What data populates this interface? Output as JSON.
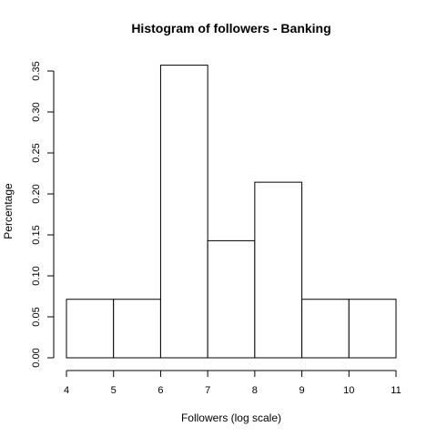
{
  "chart_data": {
    "type": "bar",
    "title": "Histogram of followers - Banking",
    "xlabel": "Followers (log scale)",
    "ylabel": "Percentage",
    "bins": [
      {
        "from": 4,
        "to": 5,
        "value": 0.0714
      },
      {
        "from": 5,
        "to": 6,
        "value": 0.0714
      },
      {
        "from": 6,
        "to": 7,
        "value": 0.3571
      },
      {
        "from": 7,
        "to": 8,
        "value": 0.1429
      },
      {
        "from": 8,
        "to": 9,
        "value": 0.2143
      },
      {
        "from": 9,
        "to": 10,
        "value": 0.0714
      },
      {
        "from": 10,
        "to": 11,
        "value": 0.0714
      }
    ],
    "xlim": [
      4,
      11
    ],
    "ylim": [
      0,
      0.35
    ],
    "x_ticks": [
      "4",
      "5",
      "6",
      "7",
      "8",
      "9",
      "10",
      "11"
    ],
    "y_ticks": [
      "0.00",
      "0.05",
      "0.10",
      "0.15",
      "0.20",
      "0.25",
      "0.30",
      "0.35"
    ],
    "grid": false,
    "legend": "none"
  }
}
